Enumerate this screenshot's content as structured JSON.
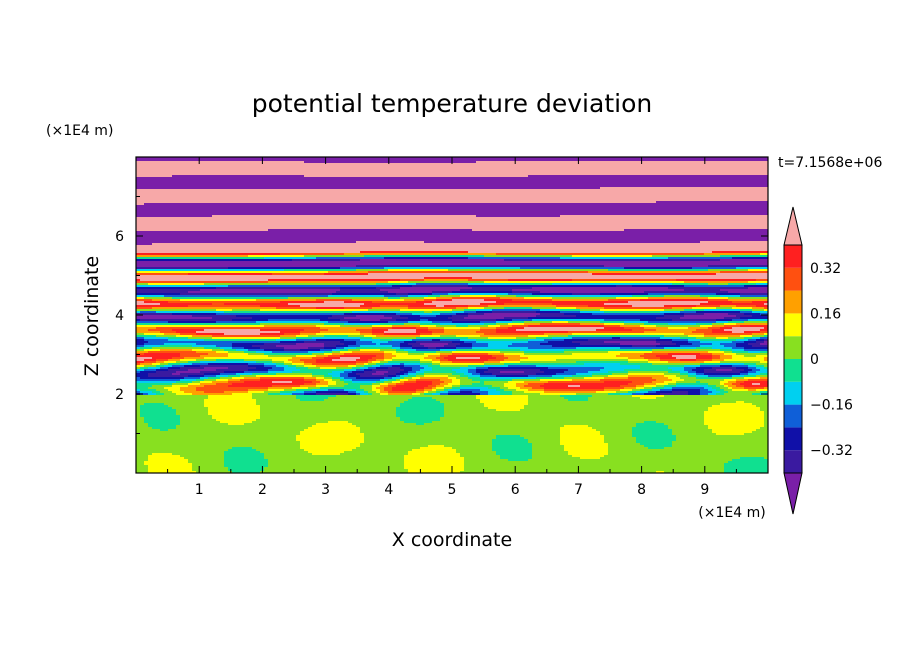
{
  "chart_data": {
    "type": "heatmap",
    "title": "potential temperature deviation",
    "xlabel": "X coordinate",
    "ylabel": "Z coordinate",
    "x_unit": "(×1E4 m)",
    "y_unit": "(×1E4 m)",
    "time_label": "t=7.1568e+06",
    "xlim": [
      0,
      10
    ],
    "ylim": [
      0,
      8
    ],
    "x_ticks": [
      1,
      2,
      3,
      4,
      5,
      6,
      7,
      8,
      9
    ],
    "y_ticks": [
      2,
      4,
      6
    ],
    "layer_boundary_z": 2.0,
    "colorbar": {
      "levels": [
        -0.4,
        -0.32,
        -0.24,
        -0.16,
        -0.08,
        0,
        0.08,
        0.16,
        0.24,
        0.32,
        0.4
      ],
      "labeled_levels": [
        "0.32",
        "0.16",
        "0",
        "−0.16",
        "−0.32"
      ],
      "labeled_values": [
        0.32,
        0.16,
        0,
        -0.16,
        -0.32
      ],
      "colors": [
        "#7a1fa8",
        "#3a1aa0",
        "#1010a8",
        "#0f5fd8",
        "#00d0f0",
        "#10e090",
        "#88e020",
        "#ffff00",
        "#ffa000",
        "#ff5010",
        "#ff2020",
        "#f7a8a8"
      ],
      "extend": "both"
    }
  }
}
